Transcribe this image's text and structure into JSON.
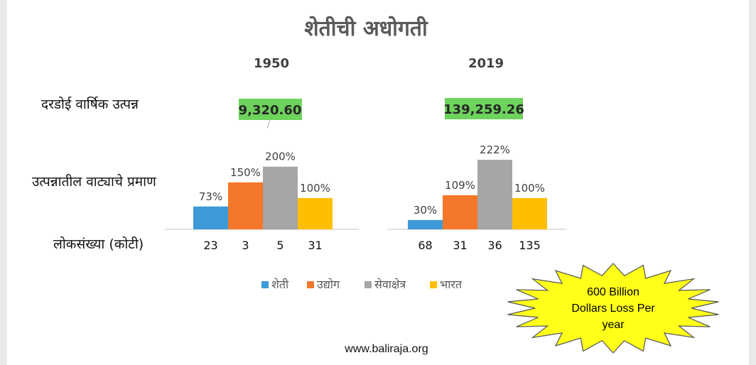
{
  "colors": {
    "sheti": "#3d9ad6",
    "udyog": "#f4782a",
    "seva": "#a6a6a6",
    "bharat": "#ffbf00",
    "income_bg": "#6dd35c",
    "burst_fill": "#ffff1a",
    "burst_stroke": "#555555"
  },
  "row_labels": {
    "income": "दरडोई वार्षिक उत्पन्न",
    "share": "उत्पन्नातील वाट्याचे प्रमाण",
    "population": "लोकसंख्या (कोटी)"
  },
  "callout": [
    "600 Billion",
    "Dollars Loss Per",
    "year"
  ],
  "website": "www.baliraja.org",
  "chart_data": {
    "type": "bar",
    "title": "शेतीची अधोगती",
    "categories": [
      "1950",
      "2019"
    ],
    "series": [
      {
        "name": "शेती",
        "values": [
          73,
          30
        ],
        "labels": [
          "73%",
          "30%"
        ],
        "population": [
          "23",
          "68"
        ]
      },
      {
        "name": "उद्योग",
        "values": [
          150,
          109
        ],
        "labels": [
          "150%",
          "109%"
        ],
        "population": [
          "3",
          "31"
        ]
      },
      {
        "name": "सेवाक्षेत्र",
        "values": [
          200,
          222
        ],
        "labels": [
          "200%",
          "222%"
        ],
        "population": [
          "5",
          "36"
        ]
      },
      {
        "name": "भारत",
        "values": [
          100,
          100
        ],
        "labels": [
          "100%",
          "100%"
        ],
        "population": [
          "31",
          "135"
        ]
      }
    ],
    "per_capita_income": [
      "9,320.60",
      "139,259.26"
    ],
    "ylim": [
      0,
      222
    ],
    "grid": false,
    "legend": "bottom"
  }
}
